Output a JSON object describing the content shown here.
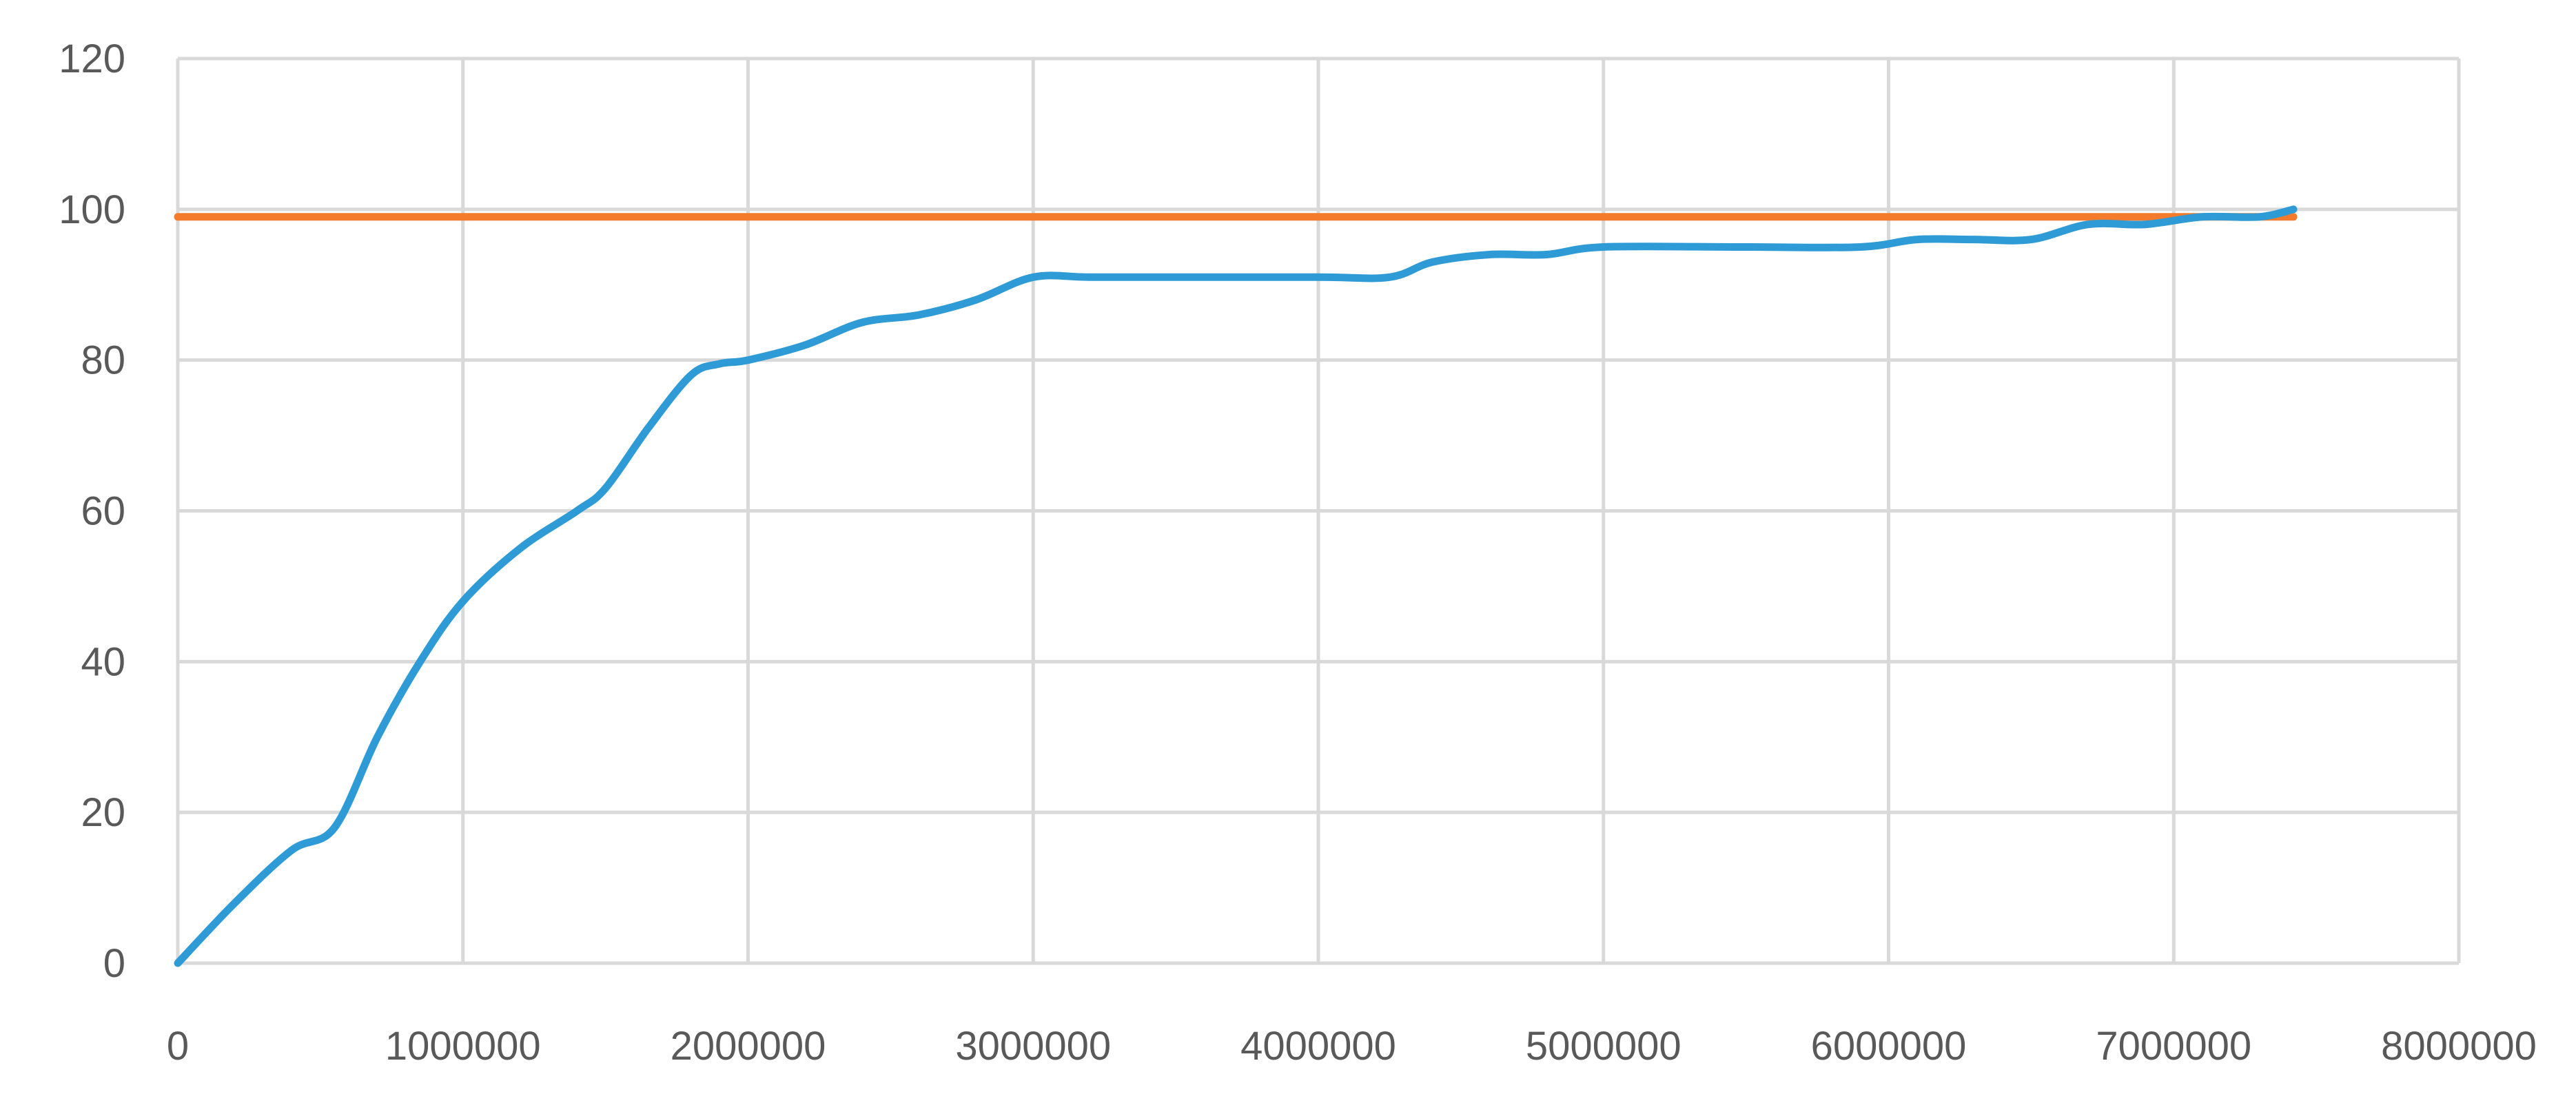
{
  "chart_data": {
    "type": "line",
    "title": "",
    "xlabel": "",
    "ylabel": "",
    "xlim": [
      0,
      8000000
    ],
    "ylim": [
      0,
      120
    ],
    "x_ticks": [
      0,
      1000000,
      2000000,
      3000000,
      4000000,
      5000000,
      6000000,
      7000000,
      8000000
    ],
    "y_ticks": [
      0,
      20,
      40,
      60,
      80,
      100,
      120
    ],
    "x_tick_labels": [
      "0",
      "1000000",
      "2000000",
      "3000000",
      "4000000",
      "5000000",
      "6000000",
      "7000000",
      "8000000"
    ],
    "y_tick_labels": [
      "0",
      "20",
      "40",
      "60",
      "80",
      "100",
      "120"
    ],
    "grid": true,
    "legend": "none",
    "series": [
      {
        "color": "#2e9bd6",
        "x": [
          0,
          200000,
          400000,
          550000,
          700000,
          850000,
          1000000,
          1200000,
          1400000,
          1500000,
          1650000,
          1800000,
          1900000,
          2000000,
          2200000,
          2400000,
          2600000,
          2800000,
          3000000,
          3200000,
          3500000,
          4000000,
          4250000,
          4400000,
          4600000,
          4800000,
          5000000,
          5500000,
          5900000,
          6100000,
          6300000,
          6500000,
          6700000,
          6900000,
          7100000,
          7300000,
          7420000
        ],
        "y": [
          0,
          8,
          15,
          18,
          30,
          40,
          48,
          55,
          60,
          63,
          71,
          78,
          79.5,
          80,
          82,
          85,
          86,
          88,
          91,
          91,
          91,
          91,
          91,
          93,
          94,
          94,
          95,
          95,
          95,
          96,
          96,
          96,
          98,
          98,
          99,
          99,
          100
        ]
      },
      {
        "color": "#f47b2c",
        "x": [
          0,
          7420000
        ],
        "y": [
          99,
          99
        ]
      }
    ]
  }
}
